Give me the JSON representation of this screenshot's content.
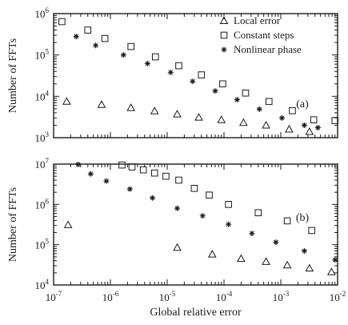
{
  "chart_data": [
    {
      "type": "scatter",
      "panel_label": "(a)",
      "xscale": "log",
      "yscale": "log",
      "xlim": [
        1e-07,
        0.01
      ],
      "ylim": [
        1000.0,
        1000000.0
      ],
      "xticks": [
        1e-07,
        1e-06,
        1e-05,
        0.0001,
        0.001,
        0.01
      ],
      "yticks": [
        1000.0,
        10000.0,
        100000.0,
        1000000.0
      ],
      "ytick_labels": [
        "10^3",
        "10^4",
        "10^5",
        "10^6"
      ],
      "ylabel": "Number of FFTs",
      "legend": {
        "placement": "top-right"
      },
      "series": [
        {
          "name": "Local error",
          "marker": "triangle",
          "x": [
            1.7e-07,
            7e-07,
            2.3e-06,
            6e-06,
            1.5e-05,
            3.6e-05,
            9e-05,
            0.00022,
            0.00055,
            0.0014,
            0.0032
          ],
          "y": [
            7500,
            6300,
            5300,
            4400,
            3700,
            3100,
            2700,
            2300,
            2000,
            1600,
            1400
          ]
        },
        {
          "name": "Constant steps",
          "marker": "square",
          "x": [
            1.4e-07,
            4e-07,
            8e-07,
            2.3e-06,
            6.2e-06,
            1.6e-05,
            4e-05,
            9.5e-05,
            0.00024,
            0.00062,
            0.0016,
            0.0038,
            0.009
          ],
          "y": [
            640000,
            400000,
            250000,
            160000,
            90000,
            55000,
            33000,
            20000,
            12000,
            7500,
            4500,
            2700,
            2600
          ]
        },
        {
          "name": "Nonlinear phase",
          "marker": "star",
          "x": [
            2.5e-07,
            5.5e-07,
            1.7e-06,
            4.5e-06,
            1.15e-05,
            2.8e-05,
            7e-05,
            0.00017,
            0.00042,
            0.00105,
            0.0026,
            0.0045
          ],
          "y": [
            280000,
            170000,
            100000,
            62000,
            38000,
            23000,
            13500,
            8300,
            4900,
            3000,
            2000,
            1750
          ]
        }
      ]
    },
    {
      "type": "scatter",
      "panel_label": "(b)",
      "xscale": "log",
      "yscale": "log",
      "xlim": [
        1e-07,
        0.01
      ],
      "ylim": [
        10000.0,
        10000000.0
      ],
      "xticks": [
        1e-07,
        1e-06,
        1e-05,
        0.0001,
        0.001,
        0.01
      ],
      "xtick_labels": [
        "10^-7",
        "10^-6",
        "10^-5",
        "10^-4",
        "10^-3",
        "10^-2"
      ],
      "yticks": [
        10000.0,
        100000.0,
        1000000.0,
        10000000.0
      ],
      "ytick_labels": [
        "10^4",
        "10^5",
        "10^6",
        "10^7"
      ],
      "xlabel": "Global relative error",
      "ylabel": "Number of FFTs",
      "series": [
        {
          "name": "Local error",
          "marker": "triangle",
          "x": [
            1.8e-07,
            1.5e-05,
            6.2e-05,
            0.0002,
            0.00055,
            0.0013,
            0.0032,
            0.0078
          ],
          "y": [
            310000,
            85000,
            58000,
            45000,
            38000,
            31000,
            26000,
            21000
          ]
        },
        {
          "name": "Constant steps",
          "marker": "square",
          "x": [
            1.6e-06,
            2.4e-06,
            3.8e-06,
            6e-06,
            9.5e-06,
            1.6e-05,
            3e-05,
            5.5e-05,
            0.00012,
            0.0004,
            0.0013,
            0.0035
          ],
          "y": [
            9500000,
            8500000,
            7200000,
            6000000,
            5000000,
            4000000,
            2500000,
            1700000,
            1000000,
            620000,
            390000,
            225000
          ],
          "in_legend": false
        },
        {
          "name": "Nonlinear phase",
          "marker": "star",
          "x": [
            2.7e-07,
            4.5e-07,
            8.5e-07,
            2.2e-06,
            5.5e-06,
            1.5e-05,
            4.2e-05,
            0.00012,
            0.00031,
            0.00082,
            0.0026,
            0.009
          ],
          "y": [
            9800000,
            5700000,
            3800000,
            2400000,
            1450000,
            800000,
            520000,
            320000,
            190000,
            115000,
            70000,
            42000
          ]
        }
      ]
    }
  ]
}
